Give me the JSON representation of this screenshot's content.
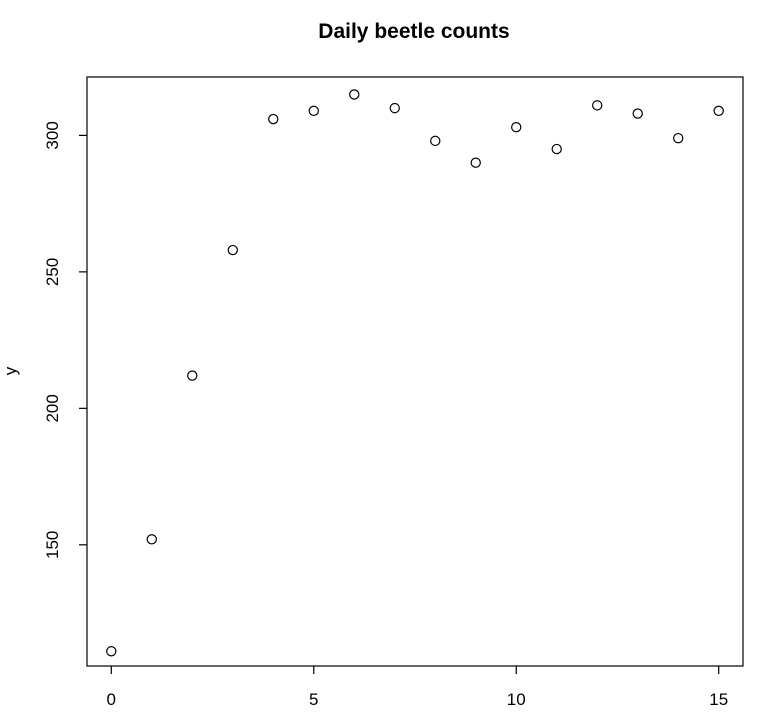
{
  "chart_data": {
    "type": "scatter",
    "title": "Daily beetle counts",
    "xlabel": "",
    "ylabel": "y",
    "xlim": [
      -0.6,
      15.6
    ],
    "ylim": [
      105.6,
      321.4
    ],
    "xticks": [
      0,
      5,
      10,
      15
    ],
    "yticks": [
      150,
      200,
      250,
      300
    ],
    "grid": false,
    "series": [
      {
        "name": "beetle counts",
        "marker": "open-circle",
        "x": [
          0,
          1,
          2,
          3,
          4,
          5,
          6,
          7,
          8,
          9,
          10,
          11,
          12,
          13,
          14,
          15
        ],
        "y": [
          111,
          152,
          212,
          258,
          306,
          309,
          315,
          310,
          298,
          290,
          303,
          295,
          311,
          308,
          299,
          309
        ]
      }
    ]
  }
}
